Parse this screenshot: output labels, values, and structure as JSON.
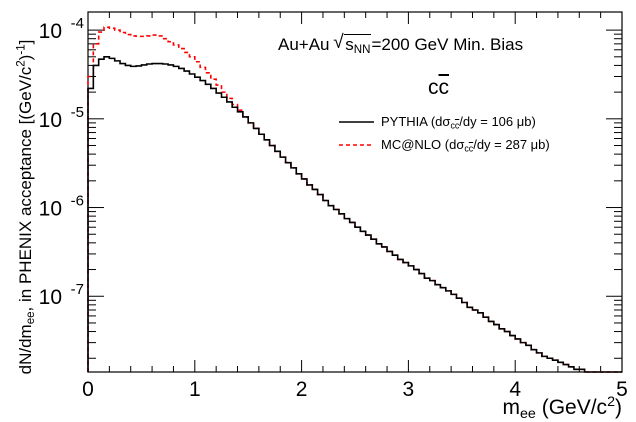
{
  "chart_data": {
    "type": "line",
    "x_range": [
      0,
      5
    ],
    "y_scale": "log",
    "y_range": [
      1.4e-08,
      0.00016
    ],
    "x_ticks": [
      "0",
      "1",
      "2",
      "3",
      "4",
      "5"
    ],
    "y_ticks": [
      {
        "base": "10",
        "exp": "-4",
        "value": 0.0001
      },
      {
        "base": "10",
        "exp": "-5",
        "value": 1e-05
      },
      {
        "base": "10",
        "exp": "-6",
        "value": 1e-06
      },
      {
        "base": "10",
        "exp": "-7",
        "value": 1e-07
      }
    ],
    "xlabel": {
      "main": "m",
      "sub": "ee",
      "unit_pre": " (GeV/c",
      "unit_sup": "2",
      "unit_post": ")"
    },
    "ylabel": {
      "p1": "dN/dm",
      "sub1": "ee",
      "p2": ", in PHENIX acceptance [(GeV/c",
      "sup1": "2",
      "p3": ")",
      "sup2": "-1",
      "p4": "]"
    },
    "annotations": {
      "system_left": "Au+Au ",
      "sqrt_s": "s",
      "sqrt_sub": "NN",
      "system_right": "=200 GeV Min. Bias",
      "cc_left": "c",
      "cc_right": "c"
    },
    "legend": {
      "position": "top-right",
      "entries": [
        {
          "name_prefix": "PYTHIA (d",
          "sigma": "σ",
          "sub": "c",
          "subbar": "c",
          "name_suffix": "/dy = 106 μb)",
          "style": "solid",
          "color": "#000000"
        },
        {
          "name_prefix": "MC@NLO (d",
          "sigma": "σ",
          "sub": "c",
          "subbar": "c",
          "name_suffix": "/dy = 287 μb)",
          "style": "dashed",
          "color": "#ff0000"
        }
      ]
    },
    "bin_width": 0.05,
    "series": [
      {
        "name": "PYTHIA (dσcc/dy = 106 μb)",
        "color": "#000000",
        "dash": "none",
        "values": [
          2.2e-05,
          4e-05,
          4.7e-05,
          5e-05,
          4.8e-05,
          4.5e-05,
          4.2e-05,
          4e-05,
          3.9e-05,
          3.95e-05,
          4.05e-05,
          4.15e-05,
          4.2e-05,
          4.2e-05,
          4.15e-05,
          4.05e-05,
          3.9e-05,
          3.7e-05,
          3.45e-05,
          3.2e-05,
          2.95e-05,
          2.7e-05,
          2.45e-05,
          2.2e-05,
          1.95e-05,
          1.75e-05,
          1.55e-05,
          1.35e-05,
          1.2e-05,
          1.05e-05,
          9e-06,
          7.8e-06,
          6.7e-06,
          5.8e-06,
          5e-06,
          4.3e-06,
          3.7e-06,
          3.2e-06,
          2.8e-06,
          2.4e-06,
          2.1e-06,
          1.8e-06,
          1.6e-06,
          1.4e-06,
          1.2e-06,
          1.05e-06,
          9.5e-07,
          8.5e-07,
          7.5e-07,
          6.8e-07,
          6e-07,
          5.4e-07,
          4.9e-07,
          4.4e-07,
          3.9e-07,
          3.6e-07,
          3.2e-07,
          2.9e-07,
          2.6e-07,
          2.4e-07,
          2.2e-07,
          2e-07,
          1.8e-07,
          1.6e-07,
          1.5e-07,
          1.35e-07,
          1.25e-07,
          1.15e-07,
          1.05e-07,
          9.5e-08,
          8.5e-08,
          7.5e-08,
          7e-08,
          6.5e-08,
          5.8e-08,
          5.2e-08,
          4.8e-08,
          4.3e-08,
          4e-08,
          3.6e-08,
          3.3e-08,
          3e-08,
          2.8e-08,
          2.5e-08,
          2.3e-08,
          2.1e-08,
          2e-08,
          1.9e-08,
          1.8e-08,
          1.7e-08,
          1.6e-08,
          1.5e-08,
          1.5e-08,
          1.4e-08,
          1.4e-08,
          1.4e-08,
          1.4e-08,
          1.4e-08,
          1.4e-08,
          1.4e-08
        ]
      },
      {
        "name": "MC@NLO (dσcc/dy = 287 μb)",
        "color": "#ff0000",
        "dash": "4,3",
        "values": [
          3e-05,
          7e-05,
          9.5e-05,
          0.000108,
          0.000105,
          0.0001,
          9.4e-05,
          8.9e-05,
          8.6e-05,
          8.5e-05,
          8.5e-05,
          8.6e-05,
          8.8e-05,
          8.6e-05,
          8e-05,
          7.4e-05,
          6.8e-05,
          6.2e-05,
          5.6e-05,
          5e-05,
          4.4e-05,
          3.8e-05,
          3.3e-05,
          2.8e-05,
          2.4e-05,
          2e-05,
          1.7e-05,
          1.45e-05,
          1.25e-05,
          1.05e-05,
          9e-06,
          7.8e-06,
          6.7e-06,
          5.8e-06,
          5e-06,
          4.3e-06,
          3.7e-06,
          3.2e-06,
          2.8e-06,
          2.4e-06,
          2.1e-06,
          1.8e-06,
          1.6e-06,
          1.4e-06,
          1.2e-06,
          1.05e-06,
          9.5e-07,
          8.5e-07,
          7.5e-07,
          6.8e-07,
          6e-07,
          5.4e-07,
          4.9e-07,
          4.4e-07,
          3.9e-07,
          3.6e-07,
          3.2e-07,
          2.9e-07,
          2.6e-07,
          2.4e-07,
          2.2e-07,
          2e-07,
          1.8e-07,
          1.6e-07,
          1.5e-07,
          1.35e-07,
          1.25e-07,
          1.15e-07,
          1.05e-07,
          9.5e-08,
          8.5e-08,
          7.5e-08,
          7e-08,
          6.5e-08,
          5.8e-08,
          5.2e-08,
          4.8e-08,
          4.3e-08,
          4e-08,
          3.6e-08,
          3.3e-08,
          3e-08,
          2.8e-08,
          2.5e-08,
          2.3e-08,
          2.1e-08,
          2e-08,
          1.9e-08,
          1.8e-08,
          1.7e-08,
          1.6e-08,
          1.5e-08,
          1.5e-08,
          1.4e-08,
          1.4e-08,
          1.4e-08,
          1.4e-08,
          1.4e-08,
          1.4e-08,
          1.4e-08
        ]
      }
    ]
  }
}
